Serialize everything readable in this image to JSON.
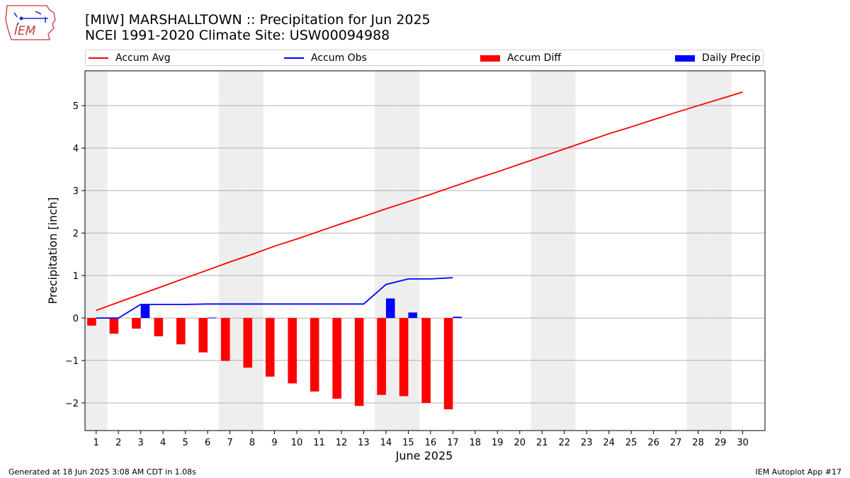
{
  "header": {
    "title": "[MIW] MARSHALLTOWN :: Precipitation for Jun 2025",
    "subtitle": "NCEI 1991-2020 Climate Site: USW00094988"
  },
  "logo": {
    "text": "IEM",
    "icon": "iowa-state-outline-icon"
  },
  "footer": {
    "generated": "Generated at 18 Jun 2025 3:08 AM CDT in 1.08s",
    "app": "IEM Autoplot App #17"
  },
  "colors": {
    "avg": "#ff0000",
    "obs": "#0000ff",
    "diff": "#ff0000",
    "daily": "#0000ff",
    "weekend": "#eeeeee",
    "grid": "#b0b0b0"
  },
  "chart_data": {
    "type": "bar",
    "title": "[MIW] MARSHALLTOWN :: Precipitation for Jun 2025",
    "subtitle": "NCEI 1991-2020 Climate Site: USW00094988",
    "xlabel": "June 2025",
    "ylabel": "Precipitation [inch]",
    "xlim": [
      0.5,
      31
    ],
    "ylim": [
      -2.65,
      5.82
    ],
    "x_ticks": [
      1,
      2,
      3,
      4,
      5,
      6,
      7,
      8,
      9,
      10,
      11,
      12,
      13,
      14,
      15,
      16,
      17,
      18,
      19,
      20,
      21,
      22,
      23,
      24,
      25,
      26,
      27,
      28,
      29,
      30
    ],
    "x_tick_labels": [
      "1",
      "2",
      "3",
      "4",
      "5",
      "6",
      "7",
      "8",
      "9",
      "10",
      "11",
      "12",
      "13",
      "14",
      "15",
      "16",
      "17",
      "18",
      "19",
      "20",
      "21",
      "22",
      "23",
      "24",
      "25",
      "26",
      "27",
      "28",
      "29",
      "30"
    ],
    "y_ticks": [
      -2,
      -1,
      0,
      1,
      2,
      3,
      4,
      5
    ],
    "y_tick_labels": [
      "−2",
      "−1",
      "0",
      "1",
      "2",
      "3",
      "4",
      "5"
    ],
    "grid": "horizontal",
    "legend_position": "top",
    "weekend_days": [
      1,
      7,
      8,
      14,
      15,
      21,
      22,
      28,
      29
    ],
    "legend": [
      "Accum Avg",
      "Accum Obs",
      "Accum Diff",
      "Daily Precip"
    ],
    "series": [
      {
        "name": "Accum Avg",
        "kind": "line",
        "color": "#ff0000",
        "x": [
          1,
          2,
          3,
          4,
          5,
          6,
          7,
          8,
          9,
          10,
          11,
          12,
          13,
          14,
          15,
          16,
          17,
          18,
          19,
          20,
          21,
          22,
          23,
          24,
          25,
          26,
          27,
          28,
          29,
          30
        ],
        "values": [
          0.18,
          0.37,
          0.56,
          0.75,
          0.94,
          1.13,
          1.32,
          1.5,
          1.69,
          1.86,
          2.04,
          2.22,
          2.39,
          2.57,
          2.74,
          2.91,
          3.09,
          3.27,
          3.44,
          3.62,
          3.8,
          3.98,
          4.16,
          4.34,
          4.5,
          4.67,
          4.84,
          5.0,
          5.16,
          5.32
        ]
      },
      {
        "name": "Accum Obs",
        "kind": "line",
        "color": "#0000ff",
        "x": [
          1,
          2,
          3,
          4,
          5,
          6,
          7,
          8,
          9,
          10,
          11,
          12,
          13,
          14,
          15,
          16,
          17
        ],
        "values": [
          0.0,
          0.0,
          0.32,
          0.32,
          0.32,
          0.33,
          0.33,
          0.33,
          0.33,
          0.33,
          0.33,
          0.33,
          0.33,
          0.79,
          0.92,
          0.92,
          0.95
        ]
      },
      {
        "name": "Accum Diff",
        "kind": "bar",
        "color": "#ff0000",
        "x": [
          1,
          2,
          3,
          4,
          5,
          6,
          7,
          8,
          9,
          10,
          11,
          12,
          13,
          14,
          15,
          16,
          17
        ],
        "values": [
          -0.18,
          -0.37,
          -0.25,
          -0.43,
          -0.62,
          -0.81,
          -1.01,
          -1.17,
          -1.38,
          -1.54,
          -1.73,
          -1.9,
          -2.07,
          -1.81,
          -1.84,
          -2.0,
          -2.15
        ]
      },
      {
        "name": "Daily Precip",
        "kind": "bar",
        "color": "#0000ff",
        "x": [
          1,
          2,
          3,
          4,
          5,
          6,
          7,
          8,
          9,
          10,
          11,
          12,
          13,
          14,
          15,
          16,
          17
        ],
        "values": [
          0,
          0,
          0.32,
          0,
          0,
          0.01,
          0,
          0,
          0,
          0,
          0,
          0,
          0,
          0.46,
          0.13,
          0,
          0.03
        ]
      }
    ]
  }
}
